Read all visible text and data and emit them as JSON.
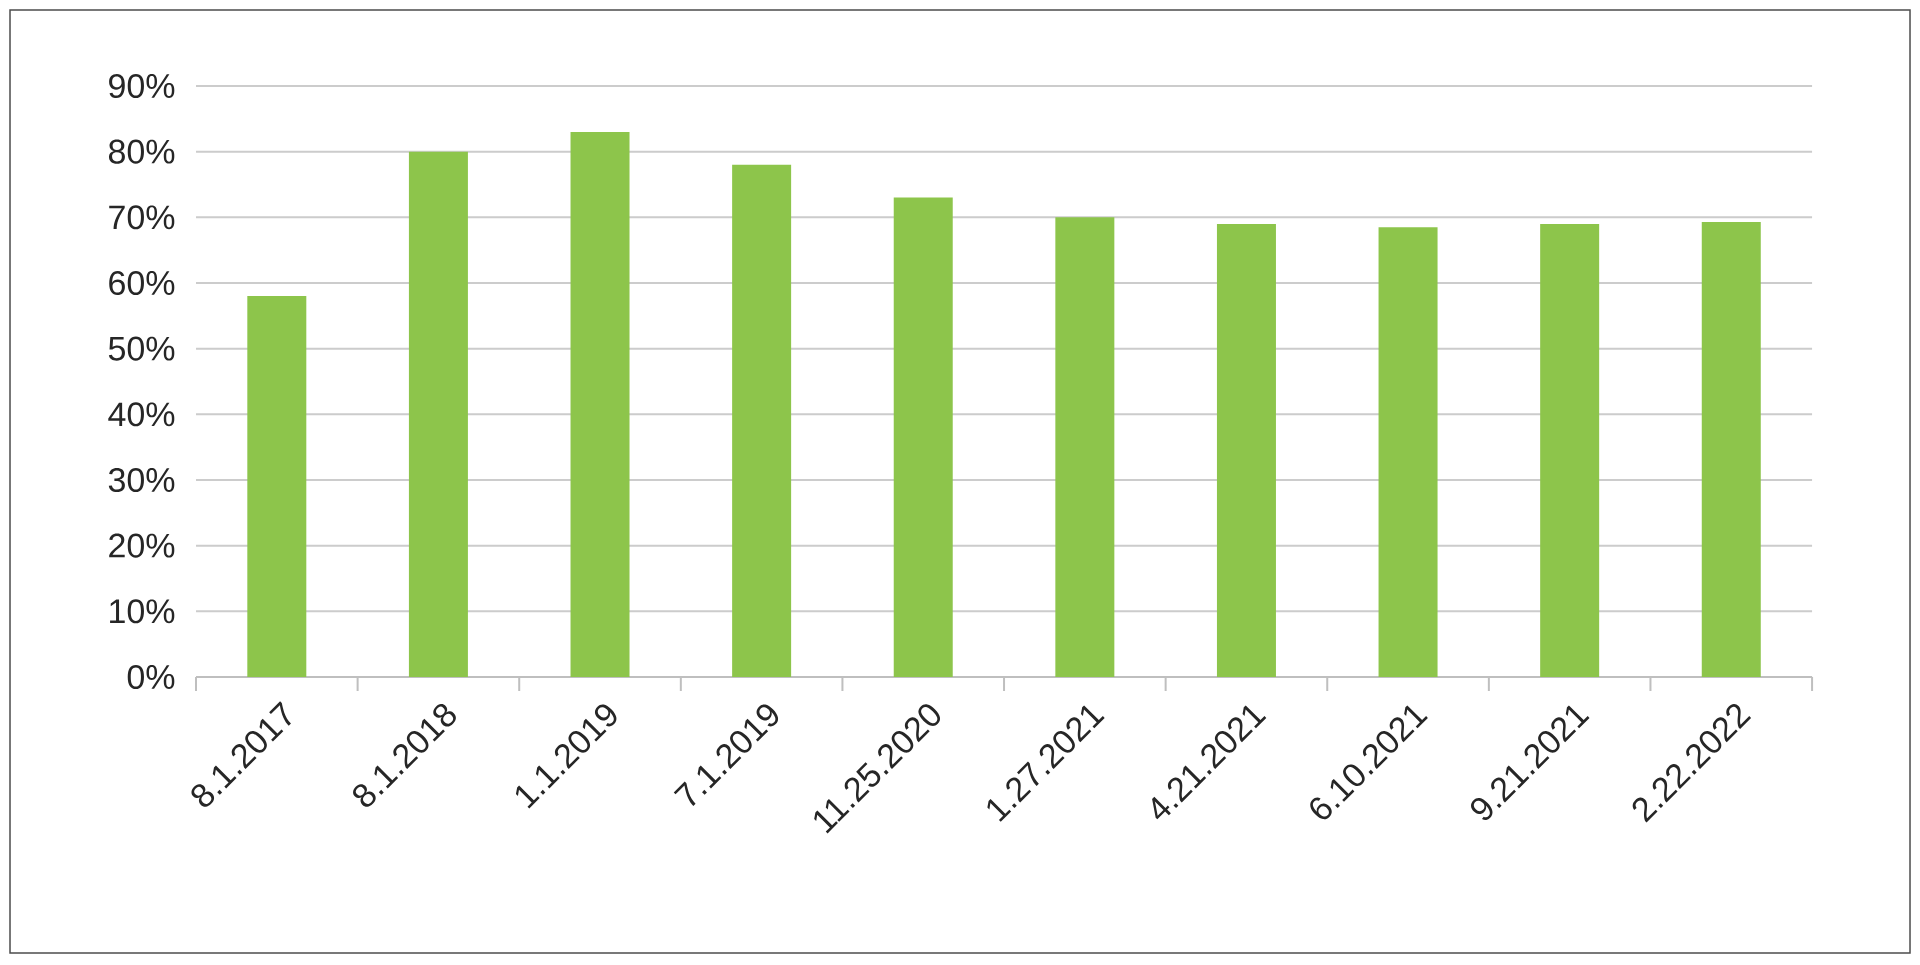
{
  "chart_data": {
    "type": "bar",
    "categories": [
      "8.1.2017",
      "8.1.2018",
      "1.1.2019",
      "7.1.2019",
      "11.25.2020",
      "1.27.2021",
      "4.21.2021",
      "6.10.2021",
      "9.21.2021",
      "2.22.2022"
    ],
    "values": [
      58,
      80,
      83,
      78,
      73,
      70,
      69,
      68.5,
      69,
      69.3
    ],
    "color": "#8dc54b",
    "ylim": [
      0,
      90
    ],
    "yticks": [
      {
        "value": 0,
        "label": "0%"
      },
      {
        "value": 10,
        "label": "10%"
      },
      {
        "value": 20,
        "label": "20%"
      },
      {
        "value": 30,
        "label": "30%"
      },
      {
        "value": 40,
        "label": "40%"
      },
      {
        "value": 50,
        "label": "50%"
      },
      {
        "value": 60,
        "label": "60%"
      },
      {
        "value": 70,
        "label": "70%"
      },
      {
        "value": 80,
        "label": "80%"
      },
      {
        "value": 90,
        "label": "90%"
      }
    ],
    "grid": "y"
  }
}
